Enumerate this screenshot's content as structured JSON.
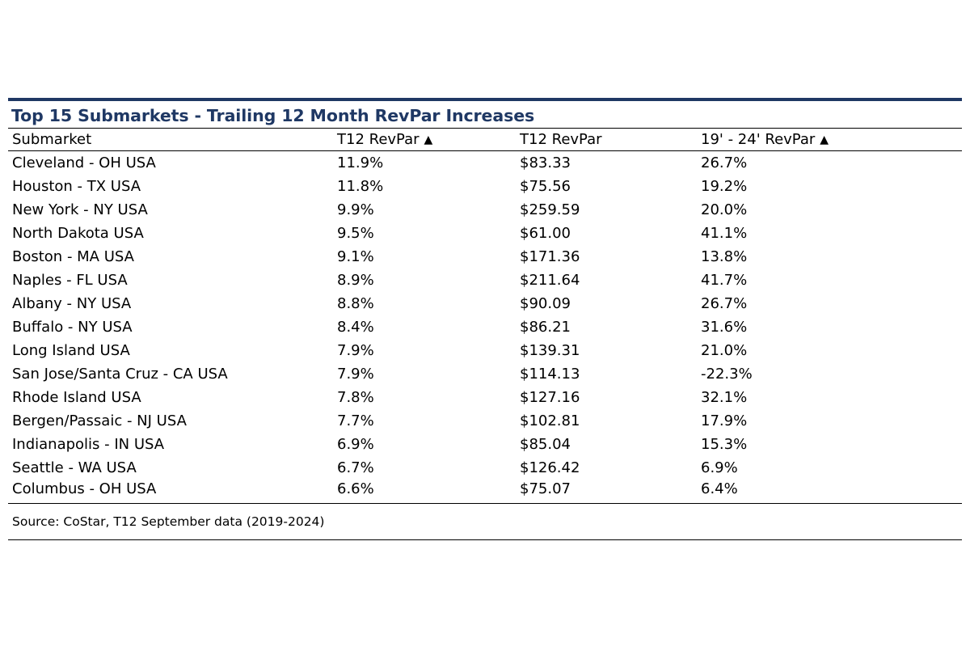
{
  "chart_data": {
    "type": "table",
    "title": "Top 15 Submarkets - Trailing 12 Month RevPar Increases",
    "columns": [
      {
        "label": "Submarket",
        "icon": ""
      },
      {
        "label": "T12 RevPar",
        "icon": "▲"
      },
      {
        "label": "T12 RevPar",
        "icon": ""
      },
      {
        "label": "19' - 24' RevPar",
        "icon": "▲"
      }
    ],
    "rows": [
      [
        "Cleveland - OH USA",
        "11.9%",
        "$83.33",
        "26.7%"
      ],
      [
        "Houston - TX USA",
        "11.8%",
        "$75.56",
        "19.2%"
      ],
      [
        "New York - NY USA",
        "9.9%",
        "$259.59",
        "20.0%"
      ],
      [
        "North Dakota USA",
        "9.5%",
        "$61.00",
        "41.1%"
      ],
      [
        "Boston - MA USA",
        "9.1%",
        "$171.36",
        "13.8%"
      ],
      [
        "Naples - FL USA",
        "8.9%",
        "$211.64",
        "41.7%"
      ],
      [
        "Albany - NY USA",
        "8.8%",
        "$90.09",
        "26.7%"
      ],
      [
        "Buffalo - NY USA",
        "8.4%",
        "$86.21",
        "31.6%"
      ],
      [
        "Long Island USA",
        "7.9%",
        "$139.31",
        "21.0%"
      ],
      [
        "San Jose/Santa Cruz - CA USA",
        "7.9%",
        "$114.13",
        "-22.3%"
      ],
      [
        "Rhode Island USA",
        "7.8%",
        "$127.16",
        "32.1%"
      ],
      [
        "Bergen/Passaic - NJ USA",
        "7.7%",
        "$102.81",
        "17.9%"
      ],
      [
        "Indianapolis - IN USA",
        "6.9%",
        "$85.04",
        "15.3%"
      ],
      [
        "Seattle - WA USA",
        "6.7%",
        "$126.42",
        "6.9%"
      ],
      [
        "Columbus - OH USA",
        "6.6%",
        "$75.07",
        "6.4%"
      ]
    ],
    "source": "Source: CoStar, T12 September data (2019-2024)"
  },
  "colors": {
    "title": "#1f3864",
    "top_rule": "#1f3864",
    "rules": "#000000"
  }
}
